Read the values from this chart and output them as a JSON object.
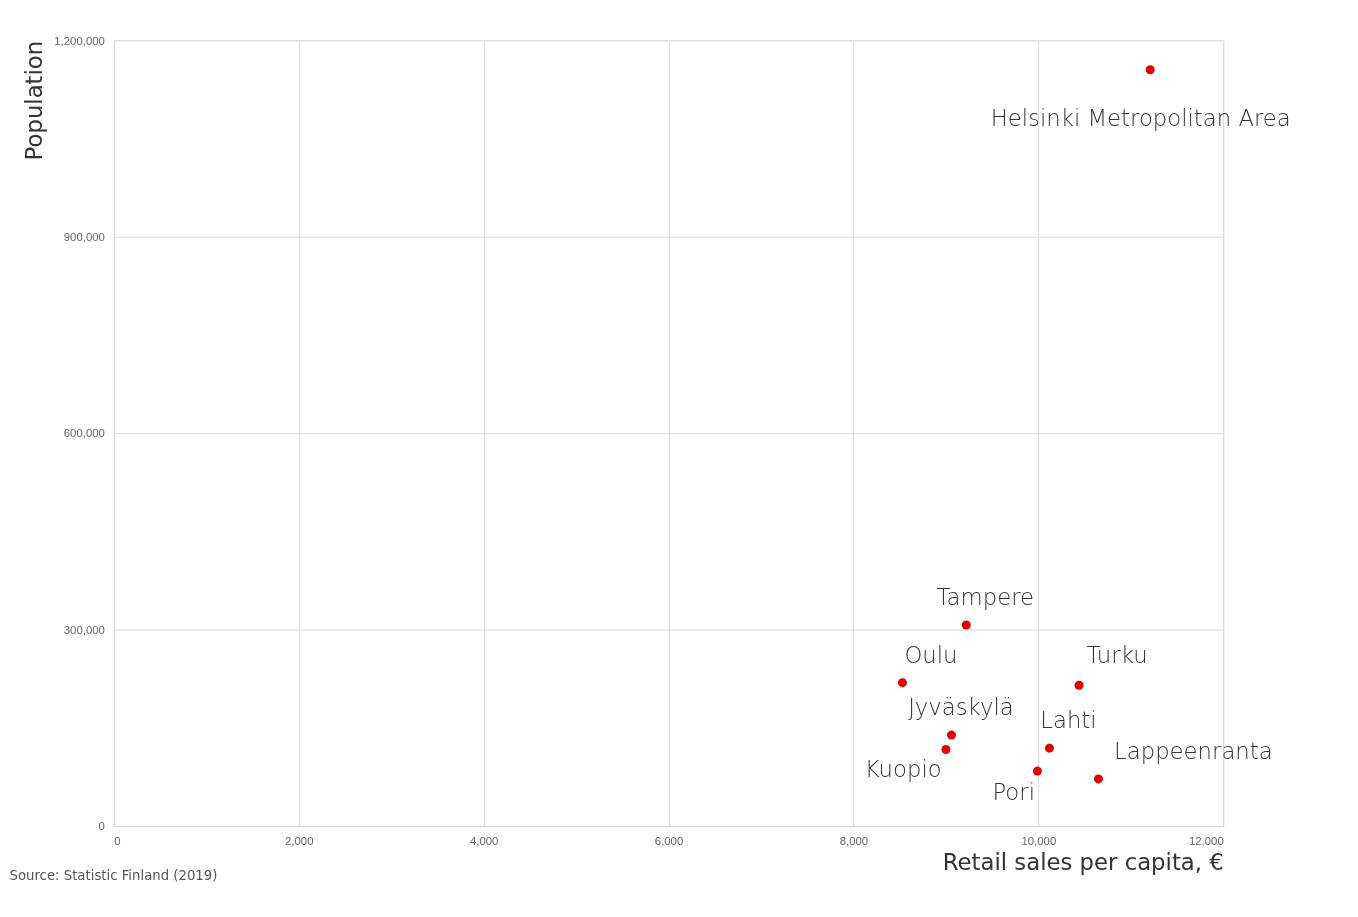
{
  "chart_data": {
    "type": "scatter",
    "xlabel": "Retail sales per capita, €",
    "ylabel": "Population",
    "series": [
      {
        "color": "#e00000",
        "x": [
          11210,
          9220,
          8530,
          10440,
          9060,
          10120,
          9000,
          9990,
          10650
        ],
        "values": [
          1155000,
          307000,
          219000,
          215000,
          139000,
          119000,
          117000,
          84000,
          72000
        ]
      }
    ],
    "annotations": [
      {
        "text": "Helsinki Metropolitan Area",
        "x": 11210,
        "y": 1155000
      },
      {
        "text": "Tampere",
        "x": 9220,
        "y": 307000
      },
      {
        "text": "Oulu",
        "x": 8530,
        "y": 219000
      },
      {
        "text": "Turku",
        "x": 10440,
        "y": 215000
      },
      {
        "text": "Jyväskylä",
        "x": 9060,
        "y": 139000
      },
      {
        "text": "Lahti",
        "x": 10120,
        "y": 119000
      },
      {
        "text": "Kuopio",
        "x": 9000,
        "y": 117000
      },
      {
        "text": "Pori",
        "x": 9990,
        "y": 84000
      },
      {
        "text": "Lappeenranta",
        "x": 10650,
        "y": 72000
      },
      "Source: Statistic Finland (2019)"
    ],
    "xlim": [
      0,
      12000
    ],
    "ylim": [
      0,
      1200000
    ],
    "xticks": [
      {
        "value": 0,
        "label": "0"
      },
      {
        "value": 2000,
        "label": "2,000"
      },
      {
        "value": 4000,
        "label": "4,000"
      },
      {
        "value": 6000,
        "label": "6,000"
      },
      {
        "value": 8000,
        "label": "8,000"
      },
      {
        "value": 10000,
        "label": "10,000"
      },
      {
        "value": 12000,
        "label": "12,000"
      }
    ],
    "yticks": [
      {
        "value": 0,
        "label": "0"
      },
      {
        "value": 300000,
        "label": "300,000"
      },
      {
        "value": 600000,
        "label": "600,000"
      },
      {
        "value": 900000,
        "label": "900,000"
      },
      {
        "value": 1200000,
        "label": "1,200,000"
      }
    ],
    "grid": true,
    "marker": "circle"
  }
}
